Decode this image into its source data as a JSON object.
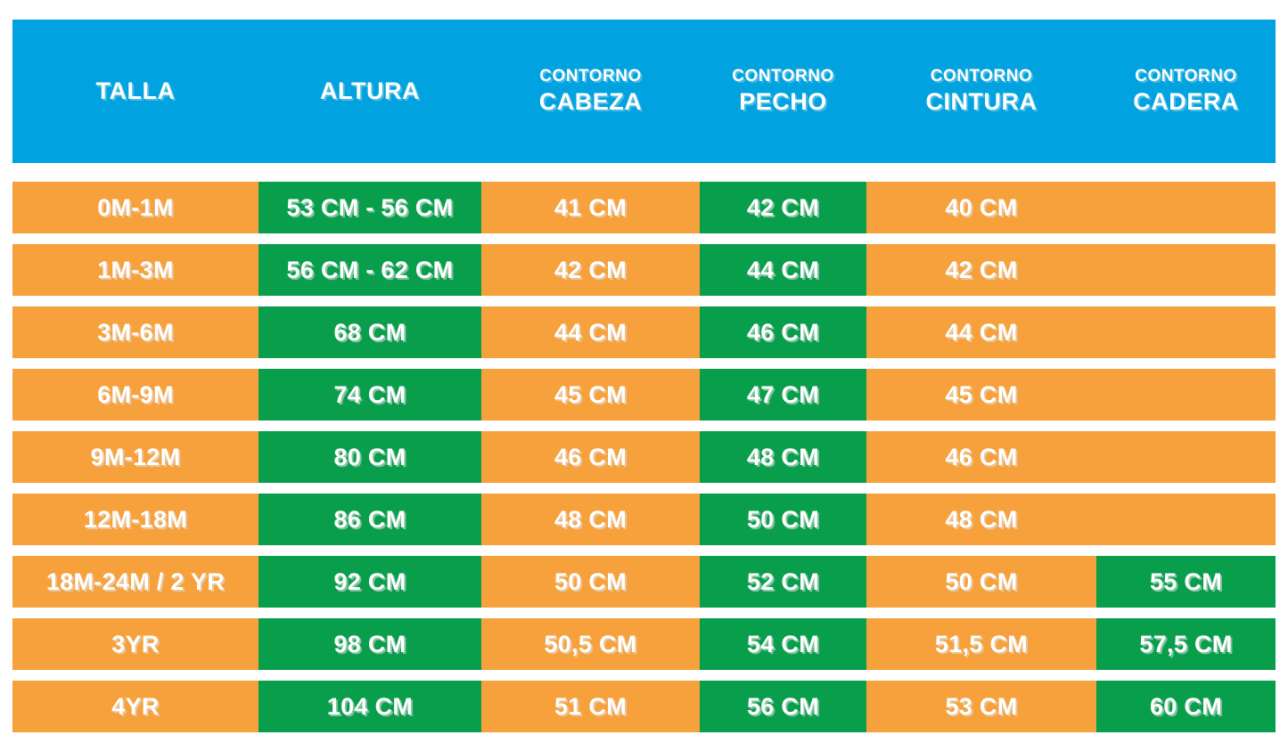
{
  "colors": {
    "header_bg": "#00A3DF",
    "orange": "#F6A13C",
    "green": "#089E4C",
    "text": "#FFFFFF"
  },
  "header": {
    "columns": [
      {
        "top": "",
        "main": "TALLA"
      },
      {
        "top": "",
        "main": "ALTURA"
      },
      {
        "top": "CONTORNO",
        "main": "CABEZA"
      },
      {
        "top": "CONTORNO",
        "main": "PECHO"
      },
      {
        "top": "CONTORNO",
        "main": "CINTURA"
      },
      {
        "top": "CONTORNO",
        "main": "CADERA"
      }
    ]
  },
  "rows": [
    {
      "cells": [
        {
          "text": "0M-1M",
          "variant": "orange"
        },
        {
          "text": "53 CM - 56 CM",
          "variant": "green"
        },
        {
          "text": "41 CM",
          "variant": "orange"
        },
        {
          "text": "42 CM",
          "variant": "green"
        },
        {
          "text": "40 CM",
          "variant": "orange"
        },
        {
          "text": "",
          "variant": "orange"
        }
      ]
    },
    {
      "cells": [
        {
          "text": "1M-3M",
          "variant": "orange"
        },
        {
          "text": "56 CM - 62 CM",
          "variant": "green"
        },
        {
          "text": "42 CM",
          "variant": "orange"
        },
        {
          "text": "44 CM",
          "variant": "green"
        },
        {
          "text": "42 CM",
          "variant": "orange"
        },
        {
          "text": "",
          "variant": "orange"
        }
      ]
    },
    {
      "cells": [
        {
          "text": "3M-6M",
          "variant": "orange"
        },
        {
          "text": "68 CM",
          "variant": "green"
        },
        {
          "text": "44 CM",
          "variant": "orange"
        },
        {
          "text": "46 CM",
          "variant": "green"
        },
        {
          "text": "44 CM",
          "variant": "orange"
        },
        {
          "text": "",
          "variant": "orange"
        }
      ]
    },
    {
      "cells": [
        {
          "text": "6M-9M",
          "variant": "orange"
        },
        {
          "text": "74 CM",
          "variant": "green"
        },
        {
          "text": "45 CM",
          "variant": "orange"
        },
        {
          "text": "47 CM",
          "variant": "green"
        },
        {
          "text": "45 CM",
          "variant": "orange"
        },
        {
          "text": "",
          "variant": "orange"
        }
      ]
    },
    {
      "cells": [
        {
          "text": "9M-12M",
          "variant": "orange"
        },
        {
          "text": "80 CM",
          "variant": "green"
        },
        {
          "text": "46 CM",
          "variant": "orange"
        },
        {
          "text": "48 CM",
          "variant": "green"
        },
        {
          "text": "46 CM",
          "variant": "orange"
        },
        {
          "text": "",
          "variant": "orange"
        }
      ]
    },
    {
      "cells": [
        {
          "text": "12M-18M",
          "variant": "orange"
        },
        {
          "text": "86 CM",
          "variant": "green"
        },
        {
          "text": "48 CM",
          "variant": "orange"
        },
        {
          "text": "50 CM",
          "variant": "green"
        },
        {
          "text": "48 CM",
          "variant": "orange"
        },
        {
          "text": "",
          "variant": "orange"
        }
      ]
    },
    {
      "cells": [
        {
          "text": "18M-24M / 2 YR",
          "variant": "orange"
        },
        {
          "text": "92 CM",
          "variant": "green"
        },
        {
          "text": "50 CM",
          "variant": "orange"
        },
        {
          "text": "52 CM",
          "variant": "green"
        },
        {
          "text": "50 CM",
          "variant": "orange"
        },
        {
          "text": "55 CM",
          "variant": "green"
        }
      ]
    },
    {
      "cells": [
        {
          "text": "3YR",
          "variant": "orange"
        },
        {
          "text": "98 CM",
          "variant": "green"
        },
        {
          "text": "50,5 CM",
          "variant": "orange"
        },
        {
          "text": "54 CM",
          "variant": "green"
        },
        {
          "text": "51,5 CM",
          "variant": "orange"
        },
        {
          "text": "57,5 CM",
          "variant": "green"
        }
      ]
    },
    {
      "cells": [
        {
          "text": "4YR",
          "variant": "orange"
        },
        {
          "text": "104 CM",
          "variant": "green"
        },
        {
          "text": "51 CM",
          "variant": "orange"
        },
        {
          "text": "56 CM",
          "variant": "green"
        },
        {
          "text": "53 CM",
          "variant": "orange"
        },
        {
          "text": "60 CM",
          "variant": "green"
        }
      ]
    }
  ],
  "chart_data": {
    "type": "table",
    "title": "",
    "columns": [
      "TALLA",
      "ALTURA",
      "CONTORNO CABEZA",
      "CONTORNO PECHO",
      "CONTORNO CINTURA",
      "CONTORNO CADERA"
    ],
    "rows": [
      [
        "0M-1M",
        "53 CM - 56 CM",
        "41 CM",
        "42 CM",
        "40 CM",
        ""
      ],
      [
        "1M-3M",
        "56 CM - 62 CM",
        "42 CM",
        "44 CM",
        "42 CM",
        ""
      ],
      [
        "3M-6M",
        "68 CM",
        "44 CM",
        "46 CM",
        "44 CM",
        ""
      ],
      [
        "6M-9M",
        "74 CM",
        "45 CM",
        "47 CM",
        "45 CM",
        ""
      ],
      [
        "9M-12M",
        "80 CM",
        "46 CM",
        "48 CM",
        "46 CM",
        ""
      ],
      [
        "12M-18M",
        "86 CM",
        "48 CM",
        "50 CM",
        "48 CM",
        ""
      ],
      [
        "18M-24M / 2 YR",
        "92 CM",
        "50 CM",
        "52 CM",
        "50 CM",
        "55 CM"
      ],
      [
        "3YR",
        "98 CM",
        "50,5 CM",
        "54 CM",
        "51,5 CM",
        "57,5 CM"
      ],
      [
        "4YR",
        "104 CM",
        "51 CM",
        "56 CM",
        "53 CM",
        "60 CM"
      ]
    ],
    "layout": {
      "header_color": "#00A3DF",
      "base_cell_color": "#F6A13C",
      "highlight_cell_color": "#089E4C",
      "grid": false
    }
  }
}
